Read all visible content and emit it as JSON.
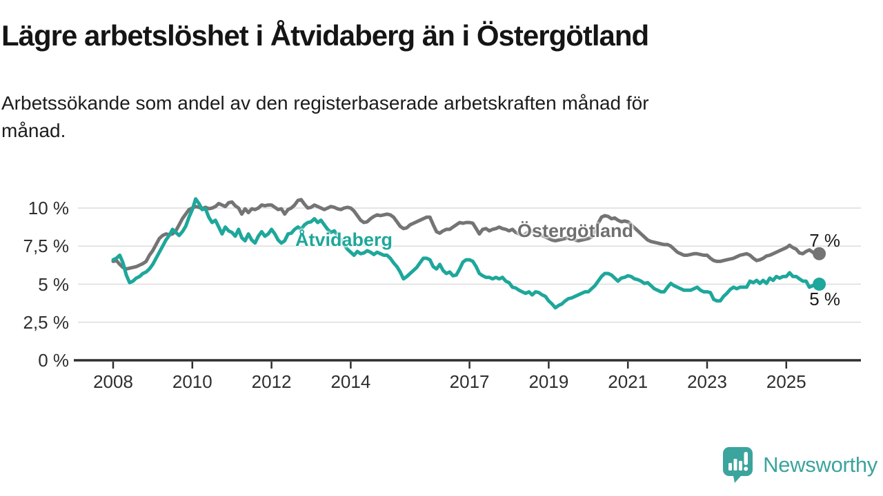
{
  "header": {
    "title": "Lägre arbetslöshet i Åtvidaberg än i Östergötland",
    "subtitle_line1": "Arbetssökande som andel av den registerbaserade arbetskraften månad för",
    "subtitle_line2": "månad."
  },
  "chart_data": {
    "type": "line",
    "title": "Lägre arbetslöshet i Åtvidaberg än i Östergötland",
    "xlabel": "",
    "ylabel": "Arbetssökande som andel av den registerbaserade arbetskraften",
    "x_unit": "monthly, Jan 2008 – Nov 2025",
    "ylim": [
      0,
      11
    ],
    "grid": true,
    "legend_position": "inline-labels",
    "colors": {
      "atvidaberg": "#1ea79b",
      "ostergotland": "#747474",
      "gridline": "#dcdcdc",
      "axis": "#2e2e2e"
    },
    "yticks": [
      {
        "value": 10,
        "label": "10 %"
      },
      {
        "value": 7.5,
        "label": "7,5 %"
      },
      {
        "value": 5,
        "label": "5 %"
      },
      {
        "value": 2.5,
        "label": "2,5 %"
      },
      {
        "value": 0,
        "label": "0 %"
      }
    ],
    "xticks": [
      {
        "value": 2008,
        "label": "2008"
      },
      {
        "value": 2010,
        "label": "2010"
      },
      {
        "value": 2012,
        "label": "2012"
      },
      {
        "value": 2014,
        "label": "2014"
      },
      {
        "value": 2017,
        "label": "2017"
      },
      {
        "value": 2019,
        "label": "2019"
      },
      {
        "value": 2021,
        "label": "2021"
      },
      {
        "value": 2023,
        "label": "2023"
      },
      {
        "value": 2025,
        "label": "2025"
      }
    ],
    "series": [
      {
        "name": "Östergötland",
        "color": "#747474",
        "end_label": "7 %",
        "end_value": 7,
        "values": [
          6.5,
          6.55,
          6.3,
          6.1,
          6.0,
          6.05,
          6.1,
          6.15,
          6.25,
          6.35,
          6.5,
          6.9,
          7.2,
          7.6,
          8.0,
          8.2,
          8.3,
          8.25,
          8.3,
          8.5,
          8.9,
          9.3,
          9.6,
          9.9,
          10.0,
          10.1,
          10.05,
          9.95,
          10.05,
          9.96,
          10.0,
          10.1,
          10.3,
          10.2,
          10.1,
          10.35,
          10.4,
          10.15,
          10.0,
          9.6,
          9.95,
          9.7,
          9.95,
          9.9,
          10.0,
          10.2,
          10.15,
          10.2,
          10.2,
          10.05,
          9.9,
          9.95,
          9.6,
          9.9,
          10.0,
          10.2,
          10.5,
          10.55,
          10.25,
          10.0,
          10.05,
          10.2,
          10.1,
          10.0,
          9.9,
          10.0,
          10.1,
          10.05,
          9.95,
          9.9,
          10.0,
          10.05,
          10.0,
          9.8,
          9.5,
          9.2,
          9.05,
          9.1,
          9.3,
          9.45,
          9.55,
          9.5,
          9.55,
          9.6,
          9.55,
          9.4,
          9.1,
          8.8,
          8.65,
          8.7,
          8.9,
          9.0,
          9.1,
          9.2,
          9.3,
          9.4,
          9.4,
          8.9,
          8.45,
          8.35,
          8.5,
          8.6,
          8.6,
          8.75,
          8.9,
          9.05,
          9.0,
          9.05,
          9.05,
          9.0,
          8.65,
          8.3,
          8.6,
          8.65,
          8.5,
          8.6,
          8.65,
          8.75,
          8.65,
          8.6,
          8.5,
          8.6,
          8.4,
          8.3,
          8.2,
          8.3,
          8.45,
          8.5,
          8.4,
          8.3,
          8.2,
          8.1,
          8.0,
          7.9,
          7.85,
          7.9,
          7.95,
          8.0,
          8.05,
          8.0,
          7.9,
          7.85,
          7.9,
          7.95,
          8.0,
          8.1,
          8.5,
          9.0,
          9.4,
          9.5,
          9.45,
          9.3,
          9.35,
          9.2,
          9.1,
          9.15,
          9.1,
          8.9,
          8.7,
          8.5,
          8.3,
          8.1,
          7.9,
          7.8,
          7.75,
          7.7,
          7.65,
          7.6,
          7.6,
          7.5,
          7.3,
          7.1,
          7.0,
          6.9,
          6.9,
          6.95,
          7.0,
          7.0,
          6.95,
          6.9,
          6.9,
          6.7,
          6.55,
          6.5,
          6.5,
          6.55,
          6.6,
          6.65,
          6.7,
          6.8,
          6.9,
          6.95,
          7.0,
          6.9,
          6.7,
          6.55,
          6.6,
          6.7,
          6.85,
          6.9,
          7.0,
          7.1,
          7.2,
          7.3,
          7.4,
          7.55,
          7.4,
          7.3,
          7.05,
          7.0,
          7.15,
          7.25,
          7.1,
          6.95,
          7.0
        ]
      },
      {
        "name": "Åtvidaberg",
        "color": "#1ea79b",
        "end_label": "5 %",
        "end_value": 5,
        "values": [
          6.6,
          6.7,
          6.9,
          6.4,
          5.6,
          5.1,
          5.2,
          5.4,
          5.5,
          5.7,
          5.8,
          6.0,
          6.3,
          6.7,
          7.1,
          7.5,
          7.9,
          8.2,
          8.6,
          8.4,
          8.2,
          8.45,
          8.8,
          9.4,
          9.9,
          10.6,
          10.3,
          9.9,
          9.95,
          9.4,
          9.05,
          9.2,
          8.75,
          8.3,
          8.75,
          8.5,
          8.4,
          8.15,
          8.6,
          8.05,
          7.85,
          8.3,
          7.9,
          7.7,
          8.15,
          8.45,
          8.15,
          8.3,
          8.6,
          8.3,
          7.9,
          7.7,
          7.85,
          8.3,
          8.35,
          8.6,
          8.75,
          8.6,
          8.9,
          9.05,
          9.1,
          9.3,
          9.05,
          9.2,
          8.9,
          8.6,
          8.4,
          8.5,
          8.2,
          7.9,
          7.6,
          7.3,
          7.1,
          6.9,
          7.15,
          7.0,
          7.05,
          7.2,
          7.1,
          6.95,
          7.1,
          7.0,
          6.9,
          6.9,
          6.7,
          6.4,
          6.15,
          5.8,
          5.35,
          5.5,
          5.7,
          5.9,
          6.1,
          6.4,
          6.7,
          6.7,
          6.6,
          6.15,
          6.0,
          6.3,
          5.9,
          5.7,
          5.8,
          5.55,
          5.6,
          6.0,
          6.45,
          6.6,
          6.6,
          6.5,
          6.15,
          5.7,
          5.55,
          5.45,
          5.45,
          5.35,
          5.45,
          5.35,
          5.45,
          5.2,
          5.1,
          4.8,
          4.75,
          4.6,
          4.5,
          4.4,
          4.5,
          4.3,
          4.5,
          4.45,
          4.3,
          4.2,
          3.9,
          3.7,
          3.45,
          3.6,
          3.7,
          3.9,
          4.05,
          4.1,
          4.2,
          4.3,
          4.4,
          4.5,
          4.5,
          4.7,
          4.9,
          5.2,
          5.5,
          5.7,
          5.7,
          5.6,
          5.4,
          5.2,
          5.4,
          5.45,
          5.55,
          5.5,
          5.35,
          5.3,
          5.2,
          5.05,
          5.1,
          4.9,
          4.7,
          4.6,
          4.5,
          4.5,
          4.8,
          5.05,
          4.9,
          4.8,
          4.7,
          4.6,
          4.6,
          4.6,
          4.7,
          4.8,
          4.6,
          4.5,
          4.5,
          4.45,
          4.0,
          3.9,
          3.9,
          4.2,
          4.4,
          4.65,
          4.8,
          4.7,
          4.8,
          4.8,
          4.8,
          5.2,
          5.1,
          5.25,
          5.05,
          5.25,
          5.05,
          5.4,
          5.25,
          5.5,
          5.4,
          5.5,
          5.5,
          5.75,
          5.5,
          5.5,
          5.35,
          5.2,
          5.2,
          4.8,
          4.9,
          5.0,
          5.0
        ]
      }
    ]
  },
  "footer": {
    "brand": "Newsworthy",
    "brand_color": "#3ba49d",
    "logo_icon": "bar-chart-speech-bubble-icon"
  }
}
